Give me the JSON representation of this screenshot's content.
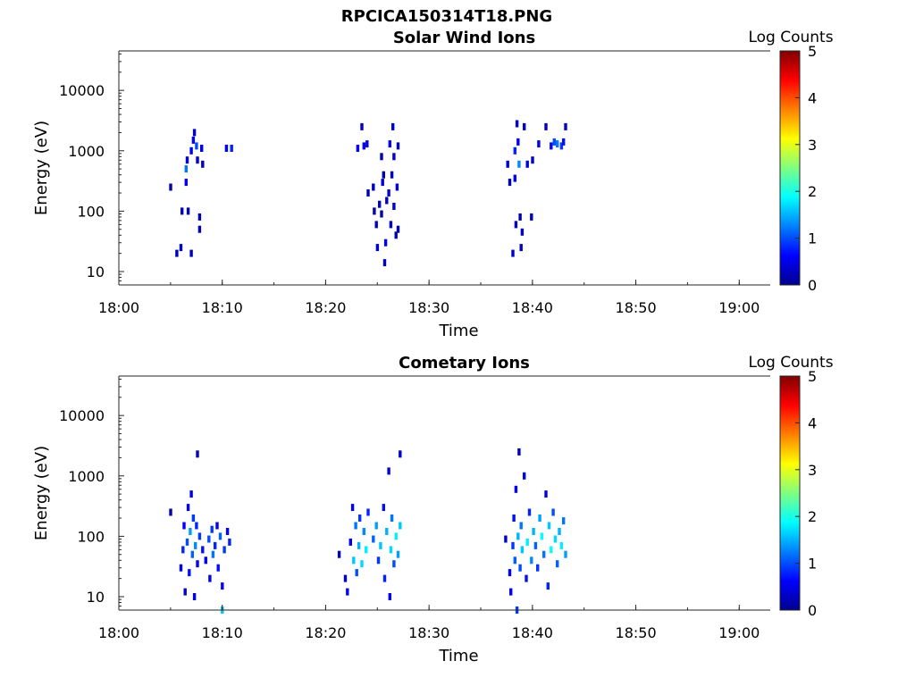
{
  "figure_title": "RPCICA150314T18.PNG",
  "colors": {
    "colormap": [
      "#00008f",
      "#0000ff",
      "#0080ff",
      "#00ffff",
      "#80ff80",
      "#ffff00",
      "#ff8000",
      "#ff0000",
      "#800000"
    ],
    "axis": "#262626"
  },
  "chart_data": [
    {
      "type": "heatmap",
      "title": "Solar Wind Ions",
      "xlabel": "Time",
      "ylabel": "Energy (eV)",
      "yscale": "log",
      "xlim": [
        "18:00",
        "19:03"
      ],
      "ylim": [
        6,
        45000
      ],
      "x_ticks": [
        "18:00",
        "18:10",
        "18:20",
        "18:30",
        "18:40",
        "18:50",
        "19:00"
      ],
      "y_ticks": [
        10,
        100,
        1000,
        10000
      ],
      "y_tick_labels": [
        "10",
        "100",
        "1000",
        "10000"
      ],
      "colorbar": {
        "label": "Log Counts",
        "range": [
          0,
          5
        ],
        "ticks": [
          "0",
          "1",
          "2",
          "3",
          "4",
          "5"
        ]
      },
      "cells": [
        [
          "18:05.0",
          250,
          0.2
        ],
        [
          "18:05.6",
          20,
          0.2
        ],
        [
          "18:06.0",
          25,
          0.3
        ],
        [
          "18:06.1",
          100,
          0.2
        ],
        [
          "18:06.5",
          300,
          0.5
        ],
        [
          "18:06.5",
          500,
          1.2
        ],
        [
          "18:06.6",
          700,
          0.4
        ],
        [
          "18:06.7",
          100,
          0.2
        ],
        [
          "18:07.0",
          20,
          0.2
        ],
        [
          "18:07.0",
          1000,
          0.5
        ],
        [
          "18:07.2",
          1500,
          0.6
        ],
        [
          "18:07.3",
          2000,
          0.3
        ],
        [
          "18:07.5",
          1200,
          1.0
        ],
        [
          "18:07.6",
          700,
          0.4
        ],
        [
          "18:07.8",
          50,
          0.2
        ],
        [
          "18:07.8",
          80,
          0.2
        ],
        [
          "18:08.0",
          1100,
          0.5
        ],
        [
          "18:08.1",
          600,
          0.3
        ],
        [
          "18:10.4",
          1100,
          0.6
        ],
        [
          "18:10.9",
          1100,
          0.8
        ],
        [
          "18:23.1",
          1100,
          0.6
        ],
        [
          "18:23.5",
          2500,
          0.3
        ],
        [
          "18:23.7",
          1200,
          0.5
        ],
        [
          "18:24.0",
          1300,
          0.4
        ],
        [
          "18:24.1",
          200,
          0.2
        ],
        [
          "18:24.6",
          250,
          0.3
        ],
        [
          "18:24.7",
          100,
          0.2
        ],
        [
          "18:24.9",
          60,
          0.3
        ],
        [
          "18:25.0",
          25,
          0.4
        ],
        [
          "18:25.2",
          130,
          0.3
        ],
        [
          "18:25.4",
          90,
          0.2
        ],
        [
          "18:25.4",
          800,
          0.2
        ],
        [
          "18:25.5",
          300,
          0.4
        ],
        [
          "18:25.6",
          400,
          0.2
        ],
        [
          "18:25.7",
          14,
          0.3
        ],
        [
          "18:25.8",
          30,
          0.5
        ],
        [
          "18:25.9",
          150,
          0.3
        ],
        [
          "18:26.1",
          200,
          0.4
        ],
        [
          "18:26.2",
          1300,
          0.5
        ],
        [
          "18:26.3",
          60,
          0.3
        ],
        [
          "18:26.4",
          400,
          0.3
        ],
        [
          "18:26.5",
          2500,
          0.3
        ],
        [
          "18:26.6",
          120,
          0.4
        ],
        [
          "18:26.6",
          800,
          0.4
        ],
        [
          "18:26.8",
          40,
          0.3
        ],
        [
          "18:26.9",
          250,
          0.4
        ],
        [
          "18:27.0",
          1200,
          0.3
        ],
        [
          "18:27.0",
          50,
          0.2
        ],
        [
          "18:37.6",
          600,
          0.3
        ],
        [
          "18:37.8",
          300,
          0.2
        ],
        [
          "18:38.1",
          20,
          0.3
        ],
        [
          "18:38.3",
          1000,
          0.8
        ],
        [
          "18:38.3",
          350,
          0.5
        ],
        [
          "18:38.4",
          60,
          0.3
        ],
        [
          "18:38.5",
          2800,
          0.4
        ],
        [
          "18:38.6",
          1400,
          0.6
        ],
        [
          "18:38.7",
          600,
          1.3
        ],
        [
          "18:38.8",
          80,
          0.2
        ],
        [
          "18:38.9",
          25,
          0.3
        ],
        [
          "18:39.0",
          45,
          0.3
        ],
        [
          "18:39.2",
          2500,
          0.3
        ],
        [
          "18:39.5",
          600,
          0.4
        ],
        [
          "18:39.9",
          80,
          0.3
        ],
        [
          "18:40.0",
          700,
          0.3
        ],
        [
          "18:40.6",
          1300,
          0.5
        ],
        [
          "18:41.3",
          2500,
          0.3
        ],
        [
          "18:41.8",
          1200,
          0.6
        ],
        [
          "18:42.1",
          1400,
          1.0
        ],
        [
          "18:42.4",
          1300,
          1.2
        ],
        [
          "18:42.8",
          1200,
          0.9
        ],
        [
          "18:43.0",
          1400,
          0.7
        ],
        [
          "18:43.2",
          2500,
          0.3
        ]
      ]
    },
    {
      "type": "heatmap",
      "title": "Cometary Ions",
      "xlabel": "Time",
      "ylabel": "Energy (eV)",
      "yscale": "log",
      "xlim": [
        "18:00",
        "19:03"
      ],
      "ylim": [
        6,
        45000
      ],
      "x_ticks": [
        "18:00",
        "18:10",
        "18:20",
        "18:30",
        "18:40",
        "18:50",
        "19:00"
      ],
      "y_ticks": [
        10,
        100,
        1000,
        10000
      ],
      "y_tick_labels": [
        "10",
        "100",
        "1000",
        "10000"
      ],
      "colorbar": {
        "label": "Log Counts",
        "range": [
          0,
          5
        ],
        "ticks": [
          "0",
          "1",
          "2",
          "3",
          "4",
          "5"
        ]
      },
      "cells": [
        [
          "18:05.0",
          250,
          0.2
        ],
        [
          "18:07.6",
          2300,
          0.3
        ],
        [
          "18:06.0",
          30,
          0.5
        ],
        [
          "18:06.2",
          60,
          0.8
        ],
        [
          "18:06.3",
          150,
          0.6
        ],
        [
          "18:06.4",
          12,
          0.4
        ],
        [
          "18:06.6",
          80,
          1.0
        ],
        [
          "18:06.7",
          300,
          0.6
        ],
        [
          "18:06.8",
          25,
          0.7
        ],
        [
          "18:06.9",
          120,
          1.4
        ],
        [
          "18:07.0",
          500,
          0.4
        ],
        [
          "18:07.1",
          50,
          1.1
        ],
        [
          "18:07.2",
          200,
          0.9
        ],
        [
          "18:07.3",
          10,
          0.5
        ],
        [
          "18:07.4",
          70,
          1.3
        ],
        [
          "18:07.5",
          150,
          0.8
        ],
        [
          "18:07.6",
          35,
          0.6
        ],
        [
          "18:07.8",
          100,
          0.9
        ],
        [
          "18:08.1",
          60,
          0.7
        ],
        [
          "18:08.4",
          40,
          0.5
        ],
        [
          "18:08.7",
          90,
          1.0
        ],
        [
          "18:08.8",
          20,
          0.6
        ],
        [
          "18:09.0",
          130,
          0.9
        ],
        [
          "18:09.1",
          50,
          1.2
        ],
        [
          "18:09.3",
          70,
          0.8
        ],
        [
          "18:09.5",
          150,
          0.6
        ],
        [
          "18:09.6",
          30,
          0.7
        ],
        [
          "18:09.8",
          100,
          1.1
        ],
        [
          "18:10.0",
          15,
          0.6
        ],
        [
          "18:10.0",
          6,
          1.6
        ],
        [
          "18:10.2",
          60,
          0.9
        ],
        [
          "18:10.5",
          120,
          0.6
        ],
        [
          "18:10.7",
          80,
          0.8
        ],
        [
          "18:21.3",
          50,
          0.2
        ],
        [
          "18:21.9",
          20,
          0.3
        ],
        [
          "18:22.1",
          12,
          0.6
        ],
        [
          "18:22.4",
          80,
          0.5
        ],
        [
          "18:22.6",
          300,
          0.6
        ],
        [
          "18:22.7",
          40,
          1.6
        ],
        [
          "18:22.9",
          150,
          1.2
        ],
        [
          "18:23.0",
          25,
          1.0
        ],
        [
          "18:23.2",
          70,
          1.5
        ],
        [
          "18:23.3",
          200,
          0.9
        ],
        [
          "18:23.5",
          35,
          1.7
        ],
        [
          "18:23.7",
          120,
          1.3
        ],
        [
          "18:23.9",
          60,
          1.8
        ],
        [
          "18:24.1",
          250,
          0.8
        ],
        [
          "18:24.6",
          90,
          1.1
        ],
        [
          "18:24.9",
          150,
          1.4
        ],
        [
          "18:25.1",
          40,
          0.9
        ],
        [
          "18:25.3",
          70,
          1.6
        ],
        [
          "18:25.6",
          300,
          0.7
        ],
        [
          "18:25.7",
          20,
          0.8
        ],
        [
          "18:25.9",
          120,
          1.5
        ],
        [
          "18:26.1",
          1200,
          0.4
        ],
        [
          "18:26.2",
          10,
          0.6
        ],
        [
          "18:26.3",
          60,
          1.7
        ],
        [
          "18:26.4",
          200,
          1.2
        ],
        [
          "18:26.6",
          35,
          1.0
        ],
        [
          "18:26.8",
          100,
          1.8
        ],
        [
          "18:27.0",
          50,
          1.4
        ],
        [
          "18:27.2",
          150,
          1.6
        ],
        [
          "18:27.2",
          2300,
          0.3
        ],
        [
          "18:37.4",
          90,
          0.3
        ],
        [
          "18:37.8",
          25,
          0.6
        ],
        [
          "18:37.9",
          12,
          0.5
        ],
        [
          "18:38.1",
          70,
          0.9
        ],
        [
          "18:38.2",
          200,
          0.7
        ],
        [
          "18:38.3",
          40,
          1.1
        ],
        [
          "18:38.4",
          600,
          0.6
        ],
        [
          "18:38.5",
          6,
          0.9
        ],
        [
          "18:38.6",
          100,
          1.5
        ],
        [
          "18:38.7",
          2500,
          0.3
        ],
        [
          "18:38.8",
          30,
          1.0
        ],
        [
          "18:38.9",
          150,
          1.2
        ],
        [
          "18:39.0",
          60,
          1.6
        ],
        [
          "18:39.2",
          1000,
          0.5
        ],
        [
          "18:39.4",
          20,
          0.7
        ],
        [
          "18:39.5",
          80,
          1.8
        ],
        [
          "18:39.7",
          250,
          0.8
        ],
        [
          "18:39.9",
          40,
          1.3
        ],
        [
          "18:40.1",
          120,
          1.5
        ],
        [
          "18:40.3",
          70,
          1.1
        ],
        [
          "18:40.5",
          30,
          0.9
        ],
        [
          "18:40.7",
          200,
          1.4
        ],
        [
          "18:40.9",
          100,
          1.9
        ],
        [
          "18:41.1",
          50,
          1.2
        ],
        [
          "18:41.3",
          500,
          0.6
        ],
        [
          "18:41.5",
          15,
          0.8
        ],
        [
          "18:41.6",
          150,
          1.6
        ],
        [
          "18:41.8",
          60,
          1.9
        ],
        [
          "18:42.0",
          250,
          1.0
        ],
        [
          "18:42.2",
          90,
          1.7
        ],
        [
          "18:42.4",
          35,
          1.1
        ],
        [
          "18:42.6",
          120,
          1.5
        ],
        [
          "18:42.8",
          70,
          1.8
        ],
        [
          "18:43.0",
          180,
          1.2
        ],
        [
          "18:43.2",
          50,
          1.4
        ]
      ]
    }
  ]
}
